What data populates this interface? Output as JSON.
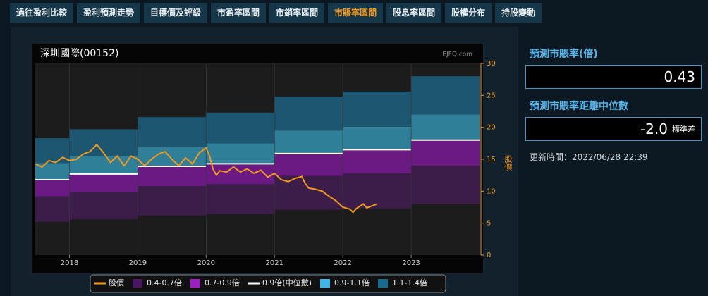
{
  "tabs": [
    {
      "label": "過往盈利比較",
      "active": false
    },
    {
      "label": "盈利預測走勢",
      "active": false
    },
    {
      "label": "目標價及評級",
      "active": false
    },
    {
      "label": "市盈率區間",
      "active": false
    },
    {
      "label": "市銷率區間",
      "active": false
    },
    {
      "label": "市賬率區間",
      "active": true
    },
    {
      "label": "股息率區間",
      "active": false
    },
    {
      "label": "股權分布",
      "active": false
    },
    {
      "label": "持股變動",
      "active": false
    }
  ],
  "chart": {
    "type": "band",
    "title": "深圳國際(00152)",
    "source": "EJFQ.com",
    "y_axis_label": "股價",
    "xlim": [
      2017.5,
      2024
    ],
    "xticks": [
      2018,
      2019,
      2020,
      2021,
      2022,
      2023
    ],
    "ylim": [
      0,
      30
    ],
    "yticks": [
      0,
      5,
      10,
      15,
      20,
      25,
      30
    ],
    "x": [
      2017.5,
      2018,
      2019,
      2020,
      2021,
      2022,
      2023
    ],
    "bands": [
      {
        "name": "0.4-0.7倍",
        "color": "#3c1c48",
        "legend_color": "#4a1660",
        "low": [
          5.2,
          5.6,
          6.2,
          6.4,
          7.1,
          7.3,
          8.0
        ],
        "high": [
          9.2,
          9.9,
          10.8,
          11.1,
          12.4,
          12.8,
          14.0
        ]
      },
      {
        "name": "0.7-0.9倍",
        "color": "#6a1a82",
        "legend_color": "#9a20c0",
        "low": [
          9.2,
          9.9,
          10.8,
          11.1,
          12.4,
          12.8,
          14.0
        ],
        "high": [
          11.8,
          12.7,
          13.9,
          14.3,
          15.9,
          16.5,
          18.0
        ]
      },
      {
        "name": "0.9-1.1倍",
        "color": "#2f7f98",
        "legend_color": "#40b4e4",
        "low": [
          11.8,
          12.7,
          13.9,
          14.3,
          15.9,
          16.5,
          18.0
        ],
        "high": [
          14.4,
          15.5,
          16.9,
          17.5,
          19.5,
          20.1,
          22.0
        ]
      },
      {
        "name": "1.1-1.4倍",
        "color": "#1c5670",
        "legend_color": "#1a6a90",
        "low": [
          14.4,
          15.5,
          16.9,
          17.5,
          19.5,
          20.1,
          22.0
        ],
        "high": [
          18.3,
          19.7,
          21.6,
          22.3,
          24.8,
          25.6,
          28.0
        ]
      }
    ],
    "median": {
      "name": "0.9倍(中位數)",
      "color": "#ffffff",
      "values": [
        11.8,
        12.7,
        13.9,
        14.3,
        15.9,
        16.5,
        18.0
      ]
    },
    "price": {
      "name": "股價",
      "color": "#f29a1e",
      "x": [
        2017.5,
        2017.6,
        2017.7,
        2017.8,
        2017.9,
        2018.0,
        2018.1,
        2018.2,
        2018.3,
        2018.4,
        2018.5,
        2018.6,
        2018.7,
        2018.8,
        2018.9,
        2019.0,
        2019.1,
        2019.2,
        2019.3,
        2019.4,
        2019.5,
        2019.6,
        2019.7,
        2019.8,
        2019.9,
        2020.0,
        2020.05,
        2020.1,
        2020.15,
        2020.2,
        2020.3,
        2020.4,
        2020.5,
        2020.6,
        2020.7,
        2020.8,
        2020.9,
        2021.0,
        2021.1,
        2021.2,
        2021.3,
        2021.4,
        2021.45,
        2021.5,
        2021.6,
        2021.7,
        2021.8,
        2021.9,
        2022.0,
        2022.1,
        2022.15,
        2022.2,
        2022.3,
        2022.35,
        2022.45,
        2022.5
      ],
      "values": [
        14.3,
        13.8,
        14.8,
        14.5,
        15.3,
        14.8,
        15.0,
        15.8,
        16.2,
        17.3,
        16.0,
        14.5,
        15.5,
        14.0,
        15.5,
        15.0,
        14.0,
        15.0,
        15.8,
        16.2,
        15.0,
        14.0,
        15.2,
        14.3,
        16.0,
        16.8,
        15.5,
        13.5,
        12.5,
        13.2,
        13.0,
        13.8,
        13.0,
        13.5,
        12.8,
        13.3,
        12.2,
        12.8,
        11.8,
        11.5,
        12.0,
        12.3,
        11.2,
        10.5,
        10.3,
        10.0,
        9.2,
        8.5,
        7.5,
        7.2,
        6.7,
        7.3,
        8.0,
        7.4,
        7.8,
        8.0
      ]
    },
    "grid": true
  },
  "side": {
    "pb_label": "預測市賬率(倍)",
    "pb_value": "0.43",
    "dist_label": "預測市賬率距離中位數",
    "dist_value": "-2.0",
    "dist_unit": "標準差",
    "updated": "更新時間：2022/06/28 22:39"
  }
}
